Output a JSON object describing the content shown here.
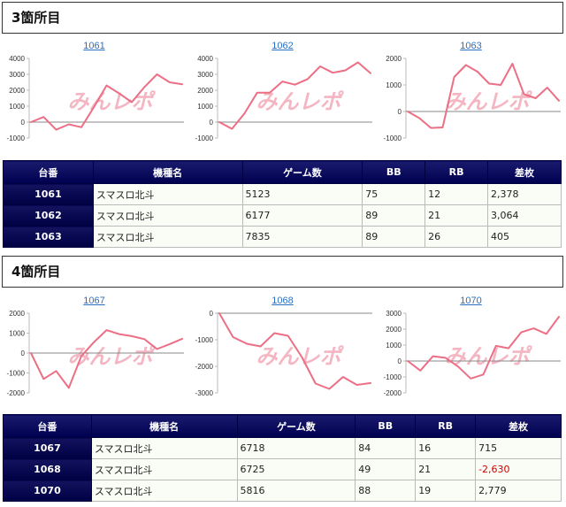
{
  "sections": [
    {
      "title": "3箇所目",
      "charts": [
        {
          "label": "1061",
          "y_ticks": [
            "4000",
            "3000",
            "2000",
            "1000",
            "0",
            "-1000"
          ],
          "ylim": [
            -1000,
            4000
          ],
          "values": [
            0,
            320,
            -480,
            -140,
            -320,
            950,
            2300,
            1800,
            1250,
            2200,
            3000,
            2500,
            2378
          ]
        },
        {
          "label": "1062",
          "y_ticks": [
            "4000",
            "3000",
            "2000",
            "1000",
            "0",
            "-1000"
          ],
          "ylim": [
            -1000,
            4000
          ],
          "values": [
            0,
            -420,
            550,
            1850,
            1850,
            2550,
            2350,
            2700,
            3500,
            3100,
            3250,
            3750,
            3064
          ]
        },
        {
          "label": "1063",
          "y_ticks": [
            "2000",
            "1000",
            "0",
            "-1000"
          ],
          "ylim": [
            -1000,
            2000
          ],
          "values": [
            0,
            -250,
            -620,
            -600,
            1300,
            1750,
            1500,
            1050,
            1000,
            1800,
            650,
            500,
            900,
            405
          ]
        }
      ],
      "table": {
        "headers": [
          "台番",
          "機種名",
          "ゲーム数",
          "BB",
          "RB",
          "差枚"
        ],
        "rows": [
          {
            "unit": "1061",
            "machine": "スマスロ北斗",
            "games": "5123",
            "bb": "75",
            "rb": "12",
            "diff": "2,378"
          },
          {
            "unit": "1062",
            "machine": "スマスロ北斗",
            "games": "6177",
            "bb": "89",
            "rb": "21",
            "diff": "3,064"
          },
          {
            "unit": "1063",
            "machine": "スマスロ北斗",
            "games": "7835",
            "bb": "89",
            "rb": "26",
            "diff": "405"
          }
        ]
      }
    },
    {
      "title": "4箇所目",
      "charts": [
        {
          "label": "1067",
          "y_ticks": [
            "2000",
            "1000",
            "0",
            "-1000",
            "-2000"
          ],
          "ylim": [
            -2000,
            2000
          ],
          "values": [
            0,
            -1300,
            -900,
            -1750,
            -150,
            550,
            1150,
            950,
            850,
            700,
            200,
            450,
            715
          ]
        },
        {
          "label": "1068",
          "y_ticks": [
            "0",
            "-1000",
            "-2000",
            "-3000"
          ],
          "ylim": [
            -3000,
            0
          ],
          "values": [
            0,
            -900,
            -1150,
            -1250,
            -750,
            -850,
            -1650,
            -2650,
            -2850,
            -2400,
            -2700,
            -2630
          ]
        },
        {
          "label": "1070",
          "y_ticks": [
            "3000",
            "2000",
            "1000",
            "0",
            "-1000",
            "-2000"
          ],
          "ylim": [
            -2000,
            3000
          ],
          "values": [
            0,
            -600,
            300,
            200,
            -350,
            -1100,
            -850,
            950,
            800,
            1800,
            2050,
            1700,
            2779
          ]
        }
      ],
      "table": {
        "headers": [
          "台番",
          "機種名",
          "ゲーム数",
          "BB",
          "RB",
          "差枚"
        ],
        "rows": [
          {
            "unit": "1067",
            "machine": "スマスロ北斗",
            "games": "6718",
            "bb": "84",
            "rb": "16",
            "diff": "715",
            "neg": false
          },
          {
            "unit": "1068",
            "machine": "スマスロ北斗",
            "games": "6725",
            "bb": "49",
            "rb": "21",
            "diff": "-2,630",
            "neg": true
          },
          {
            "unit": "1070",
            "machine": "スマスロ北斗",
            "games": "5816",
            "bb": "88",
            "rb": "19",
            "diff": "2,779",
            "neg": false
          }
        ]
      }
    }
  ],
  "watermark": "みんレポ",
  "colors": {
    "line": "#ec6f85",
    "watermark": "#f4b6c2",
    "axis": "#888888",
    "negative": "#d00000"
  }
}
